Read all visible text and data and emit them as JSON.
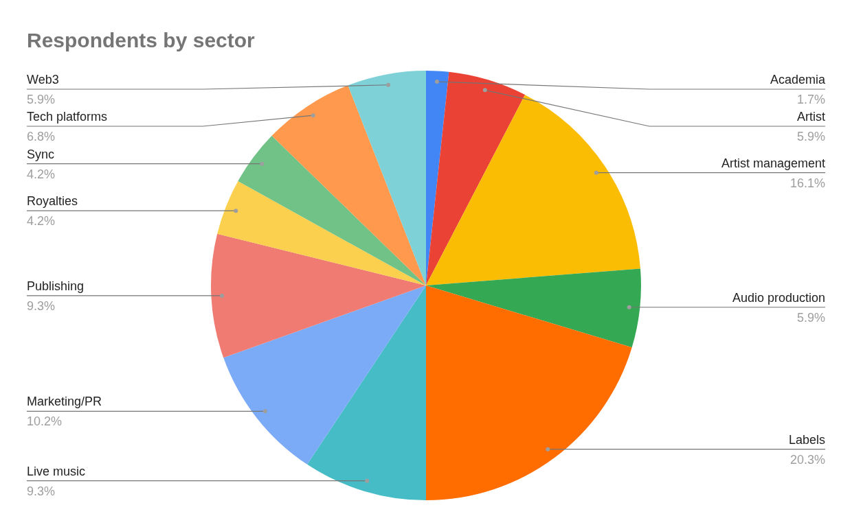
{
  "chart_data": {
    "type": "pie",
    "title": "Respondents by sector",
    "categories": [
      "Academia",
      "Artist",
      "Artist management",
      "Audio production",
      "Labels",
      "Live music",
      "Marketing/PR",
      "Publishing",
      "Royalties",
      "Sync",
      "Tech platforms",
      "Web3"
    ],
    "values": [
      1.7,
      5.9,
      16.1,
      5.9,
      20.3,
      9.3,
      10.2,
      9.3,
      4.2,
      4.2,
      6.8,
      5.9
    ],
    "colors": [
      "#4285f4",
      "#ea4335",
      "#fbbc04",
      "#34a853",
      "#ff6d01",
      "#46bdc6",
      "#7baaf7",
      "#f07b72",
      "#fcd04f",
      "#71c287",
      "#ff994d",
      "#7ed1d7"
    ],
    "value_labels": [
      "1.7%",
      "5.9%",
      "16.1%",
      "5.9%",
      "20.3%",
      "9.3%",
      "10.2%",
      "9.3%",
      "4.2%",
      "4.2%",
      "6.8%",
      "5.9%"
    ],
    "legend": false
  }
}
